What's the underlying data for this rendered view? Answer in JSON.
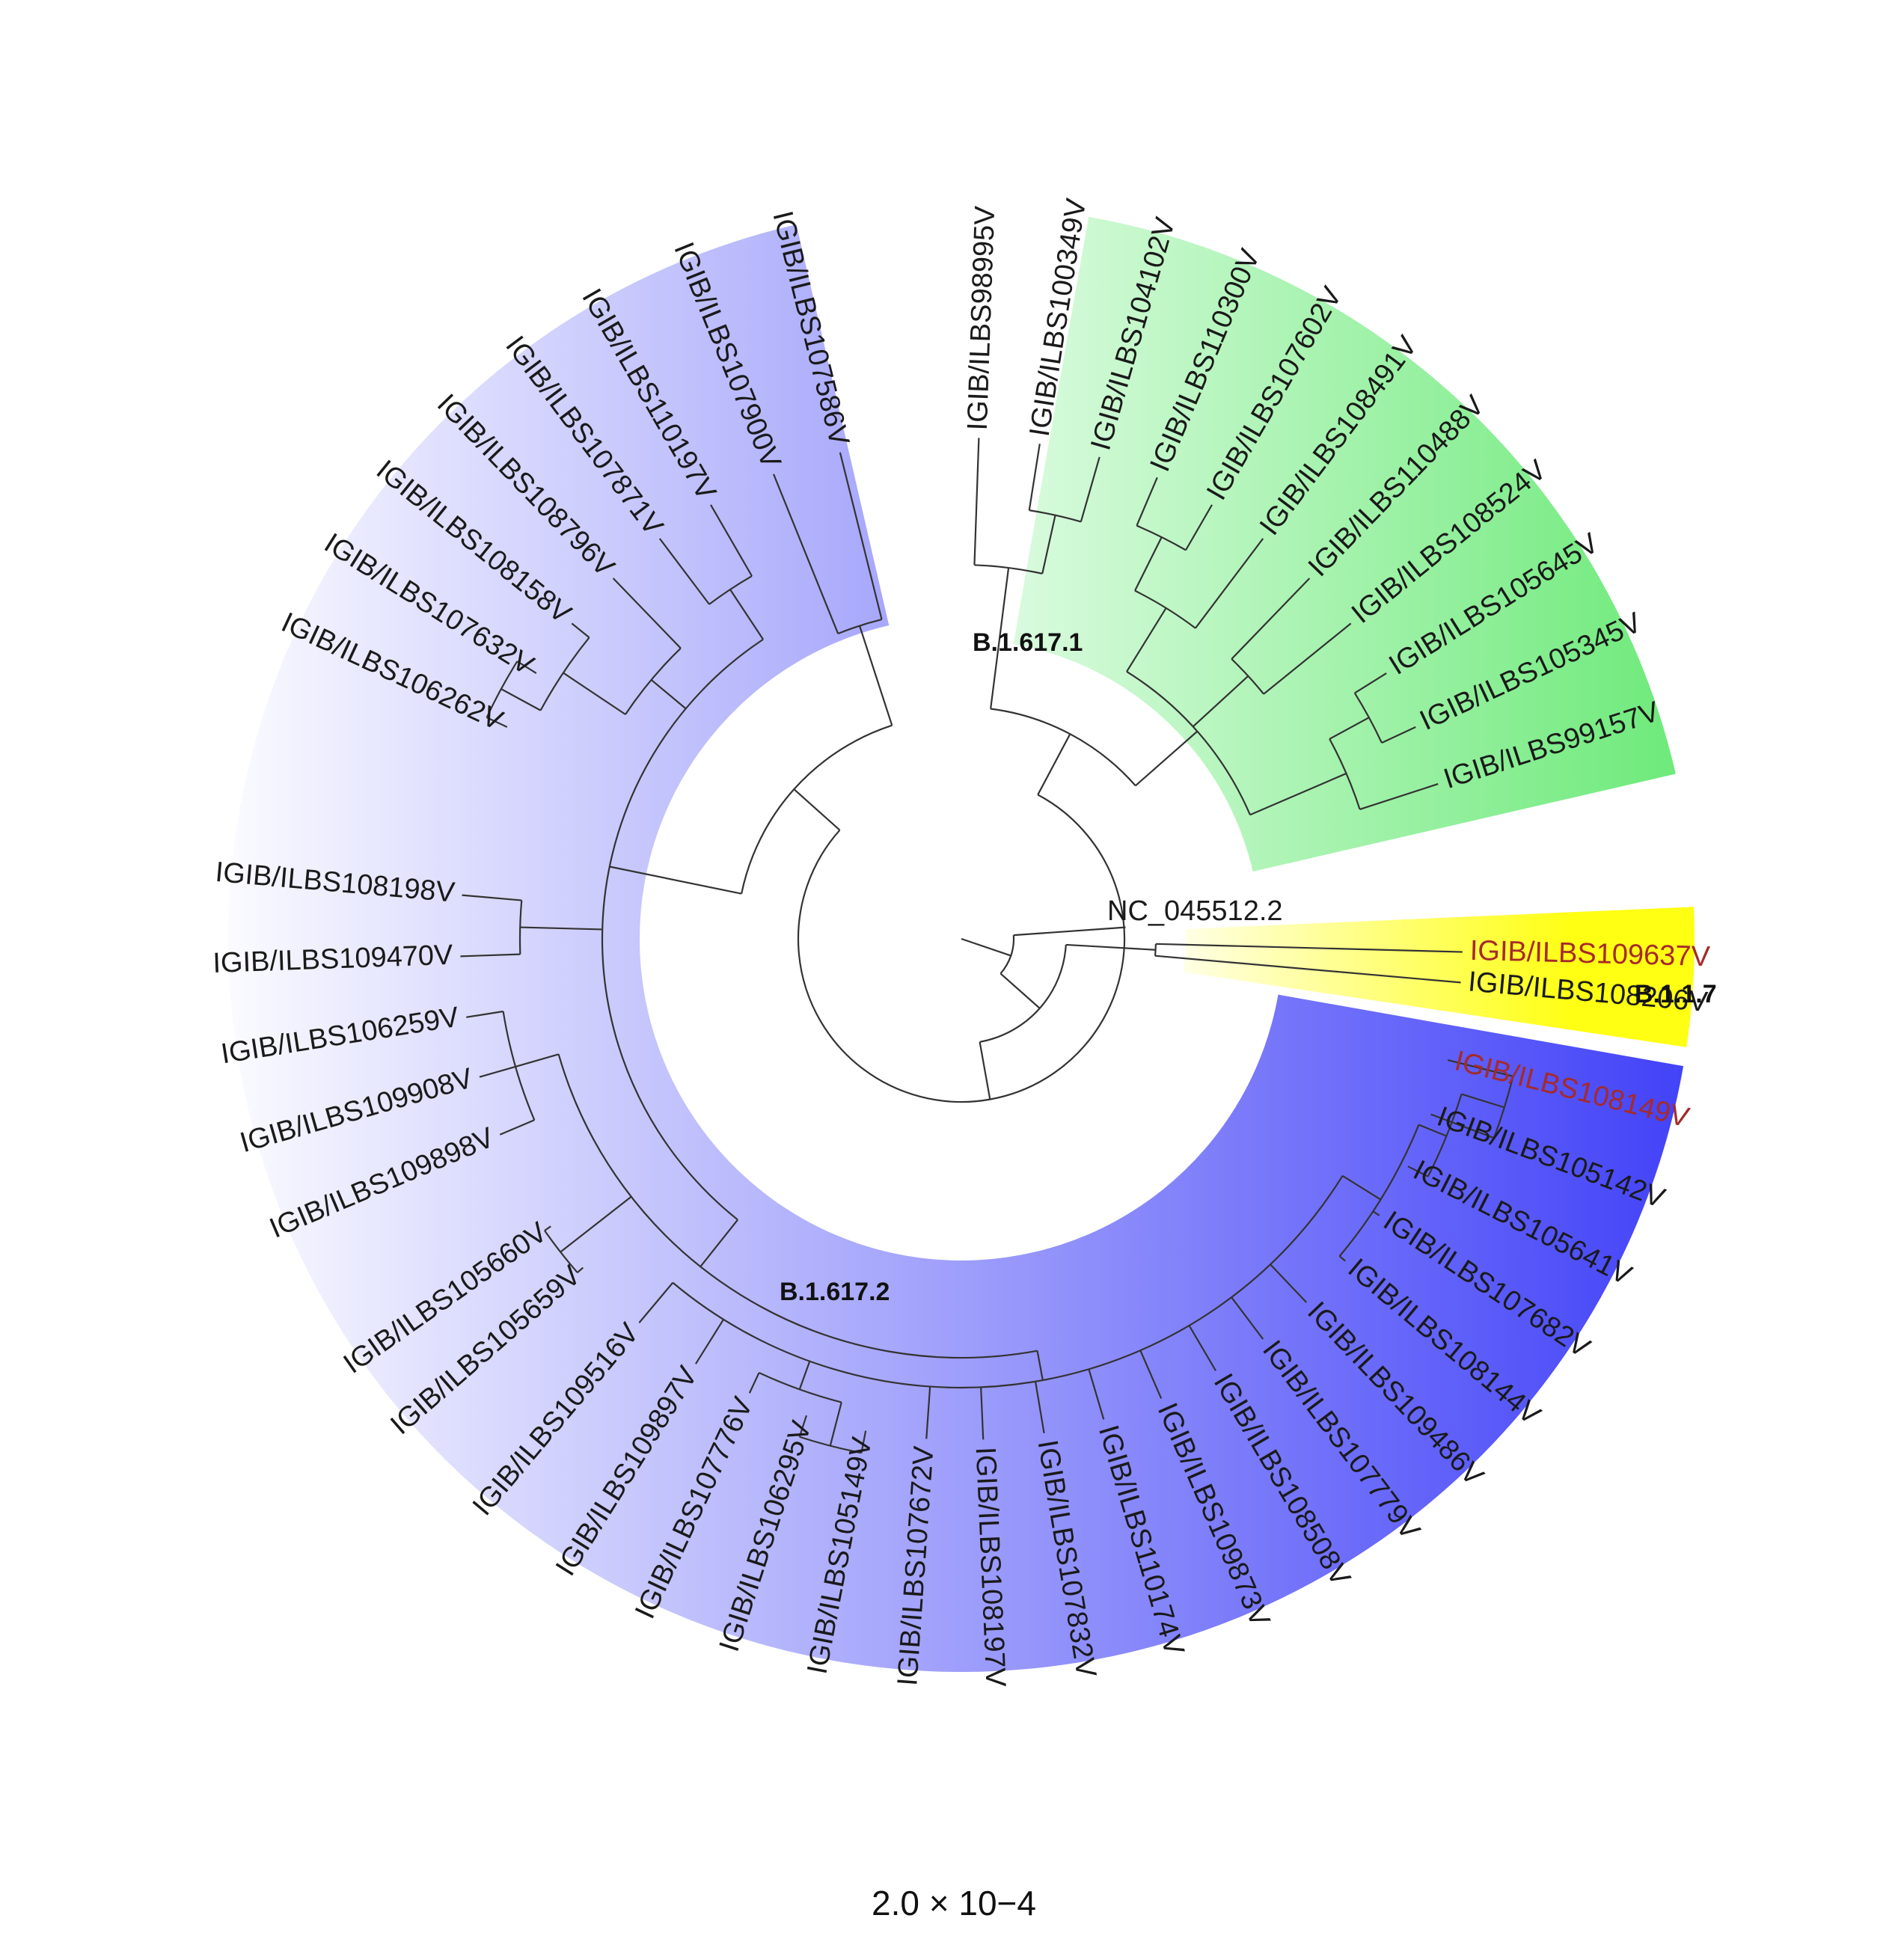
{
  "tree": {
    "root_label": "NC_045512.2",
    "scale_label": "2.0 × 10−4",
    "colors": {
      "b16171_light": "#f4fff7",
      "b16171_dark": "#62e86f",
      "b16172_light": "#ffffff",
      "b16172_dark": "#3a3af8",
      "b117": "#ffff14",
      "highlight": "#a52a2a",
      "normal": "#1a1a1a"
    },
    "clades": [
      {
        "name": "B.1.617.1"
      },
      {
        "name": "B.1.617.2"
      },
      {
        "name": "B.1.1.7"
      }
    ],
    "leaves": [
      "IGIB/ILBS108149V",
      "IGIB/ILBS105142V",
      "IGIB/ILBS105641V",
      "IGIB/ILBS107682V",
      "IGIB/ILBS108144V",
      "IGIB/ILBS109486V",
      "IGIB/ILBS107779V",
      "IGIB/ILBS108508V",
      "IGIB/ILBS109873V",
      "IGIB/ILBS110174V",
      "IGIB/ILBS107832V",
      "IGIB/ILBS108197V",
      "IGIB/ILBS107672V",
      "IGIB/ILBS105149V",
      "IGIB/ILBS106295V",
      "IGIB/ILBS107776V",
      "IGIB/ILBS109897V",
      "IGIB/ILBS109516V",
      "IGIB/ILBS105659V",
      "IGIB/ILBS105660V",
      "IGIB/ILBS109898V",
      "IGIB/ILBS109908V",
      "IGIB/ILBS106259V",
      "IGIB/ILBS109470V",
      "IGIB/ILBS108198V",
      "IGIB/ILBS106262V",
      "IGIB/ILBS107632V",
      "IGIB/ILBS108158V",
      "IGIB/ILBS108796V",
      "IGIB/ILBS107871V",
      "IGIB/ILBS110197V",
      "IGIB/ILBS107900V",
      "IGIB/ILBS107586V",
      "IGIB/ILBS98995V",
      "IGIB/ILBS100349V",
      "IGIB/ILBS104102V",
      "IGIB/ILBS110300V",
      "IGIB/ILBS107602V",
      "IGIB/ILBS108491V",
      "IGIB/ILBS110488V",
      "IGIB/ILBS108524V",
      "IGIB/ILBS105645V",
      "IGIB/ILBS105345V",
      "IGIB/ILBS99157V",
      "IGIB/ILBS109637V",
      "IGIB/ILBS108206V"
    ],
    "highlighted_leaves": [
      "IGIB/ILBS108149V",
      "IGIB/ILBS109637V"
    ]
  }
}
